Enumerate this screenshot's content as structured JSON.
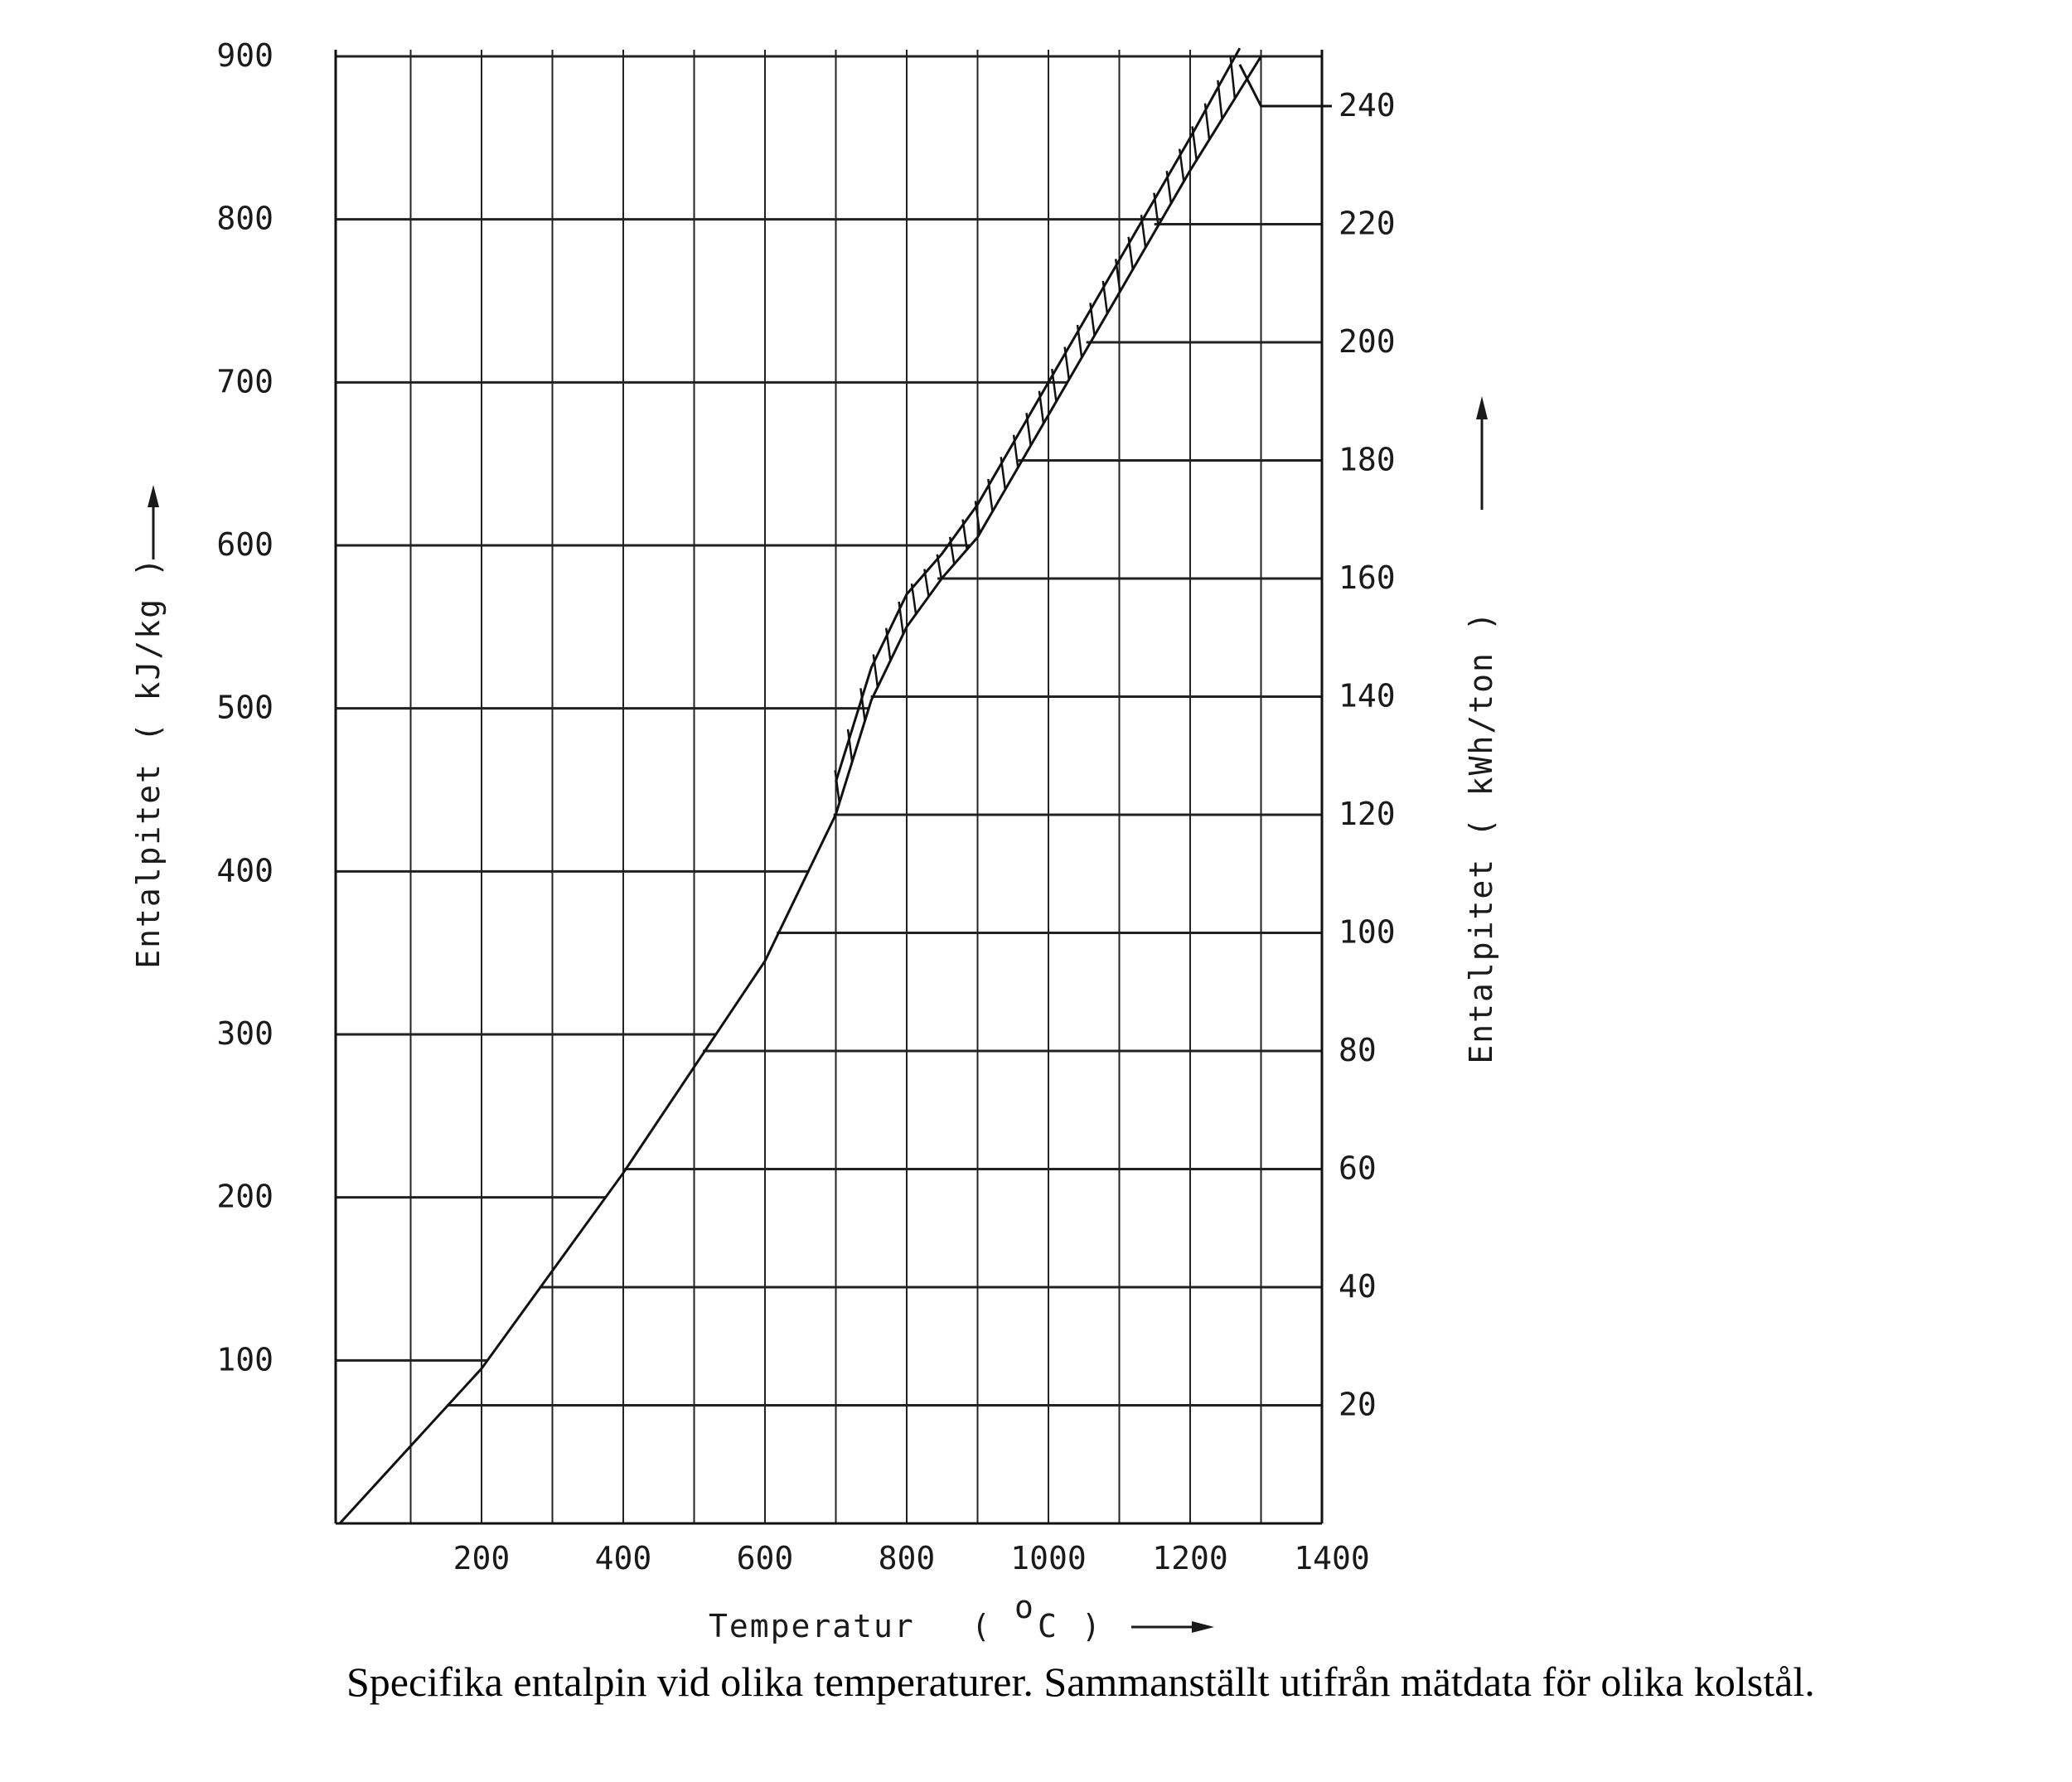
{
  "caption": "Specifika entalpin vid olika temperaturer. Sammanställt utifrån mätdata för olika kolstål.",
  "chart_data": {
    "type": "line",
    "title": "",
    "xlabel": "Temperatur",
    "xlabel_unit_open": "(",
    "xlabel_unit_sup": "o",
    "xlabel_unit_letter": "C",
    "xlabel_unit_close": ")",
    "ylabel_left": "Entalpitet ( kJ/kg )",
    "ylabel_right": "Entalpitet ( kWh/ton )",
    "xlim": [
      0,
      1400
    ],
    "ylim_left": [
      0,
      900
    ],
    "ylim_right": [
      0,
      250
    ],
    "x_ticks": [
      "200",
      "400",
      "600",
      "800",
      "1000",
      "1200",
      "1400"
    ],
    "y_left_ticks": [
      "100",
      "200",
      "300",
      "400",
      "500",
      "600",
      "700",
      "800",
      "900"
    ],
    "y_right_ticks": [
      "20",
      "40",
      "60",
      "80",
      "100",
      "120",
      "140",
      "160",
      "180",
      "200",
      "220",
      "240"
    ],
    "grid": true,
    "series": [
      {
        "lower": [
          [
            0,
            0
          ],
          [
            200,
            95
          ],
          [
            400,
            215
          ],
          [
            600,
            345
          ],
          [
            700,
            435
          ],
          [
            750,
            505
          ],
          [
            800,
            550
          ],
          [
            850,
            580
          ],
          [
            900,
            605
          ],
          [
            1000,
            680
          ],
          [
            1100,
            755
          ],
          [
            1200,
            830
          ],
          [
            1300,
            900
          ]
        ],
        "upper": [
          [
            700,
            455
          ],
          [
            750,
            525
          ],
          [
            800,
            570
          ],
          [
            850,
            595
          ],
          [
            900,
            625
          ],
          [
            1000,
            700
          ],
          [
            1100,
            775
          ],
          [
            1200,
            850
          ],
          [
            1270,
            905
          ]
        ]
      },
      {
        "points": [
          [
            1300,
            240
          ],
          [
            1400,
            240
          ]
        ]
      }
    ]
  }
}
